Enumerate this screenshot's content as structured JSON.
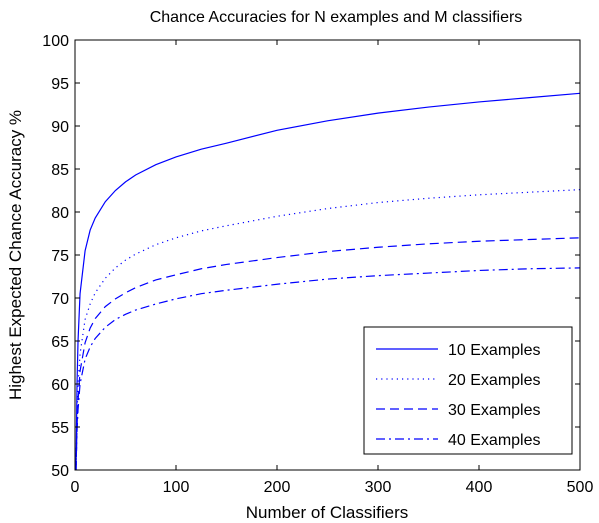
{
  "chart_data": {
    "type": "line",
    "title": "Chance Accuracies for N examples and M classifiers",
    "xlabel": "Number of Classifiers",
    "ylabel": "Highest Expected Chance Accuracy %",
    "xlim": [
      0,
      500
    ],
    "ylim": [
      50,
      100
    ],
    "xticks": [
      0,
      100,
      200,
      300,
      400,
      500
    ],
    "yticks": [
      50,
      55,
      60,
      65,
      70,
      75,
      80,
      85,
      90,
      95,
      100
    ],
    "grid": false,
    "legend_position": "bottom-right",
    "line_color": "#0000ff",
    "x": [
      1,
      2,
      3,
      5,
      10,
      15,
      20,
      30,
      40,
      50,
      60,
      80,
      100,
      125,
      150,
      200,
      250,
      300,
      350,
      400,
      450,
      500
    ],
    "series": [
      {
        "name": "10 Examples",
        "style": "solid",
        "values": [
          50.0,
          60.0,
          65.0,
          70.5,
          75.5,
          77.9,
          79.3,
          81.2,
          82.5,
          83.5,
          84.3,
          85.5,
          86.4,
          87.3,
          88.0,
          89.5,
          90.6,
          91.5,
          92.2,
          92.8,
          93.3,
          93.8
        ]
      },
      {
        "name": "20 Examples",
        "style": "dotted",
        "values": [
          50.0,
          56.0,
          60.0,
          63.5,
          67.5,
          69.3,
          70.6,
          72.3,
          73.5,
          74.4,
          75.1,
          76.2,
          77.0,
          77.8,
          78.4,
          79.5,
          80.4,
          81.1,
          81.6,
          82.0,
          82.3,
          82.6
        ]
      },
      {
        "name": "30 Examples",
        "style": "dashed",
        "values": [
          50.0,
          55.0,
          58.0,
          61.5,
          64.8,
          66.5,
          67.6,
          69.0,
          69.9,
          70.6,
          71.2,
          72.1,
          72.7,
          73.4,
          73.9,
          74.7,
          75.4,
          75.9,
          76.3,
          76.6,
          76.8,
          77.0
        ]
      },
      {
        "name": "40 Examples",
        "style": "dash-dot",
        "values": [
          50.0,
          54.5,
          57.0,
          60.0,
          62.9,
          64.3,
          65.3,
          66.6,
          67.5,
          68.1,
          68.6,
          69.3,
          69.9,
          70.5,
          70.9,
          71.6,
          72.2,
          72.6,
          72.9,
          73.2,
          73.4,
          73.5
        ]
      }
    ]
  }
}
